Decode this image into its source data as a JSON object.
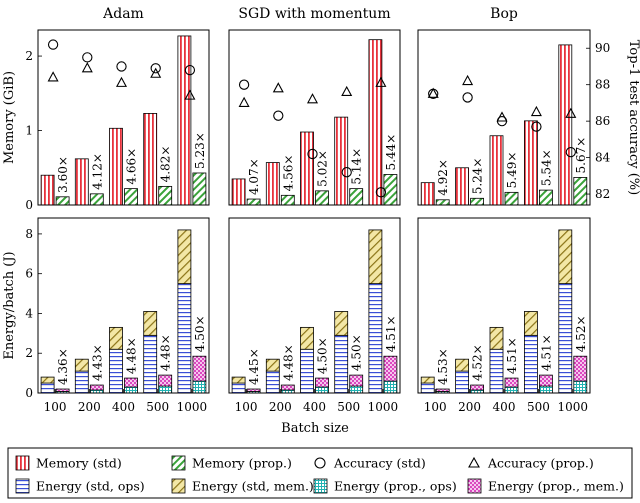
{
  "chart_data": {
    "type": "bar",
    "categories": [
      "100",
      "200",
      "400",
      "500",
      "1000"
    ],
    "xlabel": "Batch size",
    "colors": {
      "memory_std": "#e8323c",
      "memory_prop": "#3aa33a",
      "energy_ops": "#3a4fd6",
      "energy_mem": "#c9a81e",
      "energy_prop_ops": "#22b3b3",
      "energy_prop_mem": "#d21fb0"
    },
    "panels": [
      {
        "title": "Adam",
        "memory": {
          "std": [
            0.4,
            0.62,
            1.03,
            1.23,
            2.27
          ],
          "prop": [
            0.11,
            0.15,
            0.22,
            0.25,
            0.43
          ],
          "ratio_labels": [
            "3.60×",
            "4.12×",
            "4.66×",
            "4.82×",
            "5.23×"
          ]
        },
        "accuracy": {
          "std": [
            90.2,
            89.5,
            89.0,
            88.9,
            88.8
          ],
          "prop": [
            88.4,
            88.9,
            88.1,
            88.6,
            87.4
          ]
        },
        "energy": {
          "std_ops": [
            0.5,
            1.1,
            2.2,
            2.9,
            5.5
          ],
          "std_mem": [
            0.3,
            0.6,
            1.1,
            1.2,
            2.7
          ],
          "prop_ops": [
            0.08,
            0.15,
            0.3,
            0.35,
            0.6
          ],
          "prop_mem": [
            0.12,
            0.25,
            0.45,
            0.55,
            1.25
          ],
          "ratio_labels": [
            "4.36×",
            "4.43×",
            "4.48×",
            "4.48×",
            "4.50×"
          ]
        }
      },
      {
        "title": "SGD with momentum",
        "memory": {
          "std": [
            0.35,
            0.57,
            0.98,
            1.18,
            2.22
          ],
          "prop": [
            0.08,
            0.13,
            0.19,
            0.22,
            0.41
          ],
          "ratio_labels": [
            "4.07×",
            "4.56×",
            "5.02×",
            "5.14×",
            "5.44×"
          ]
        },
        "accuracy": {
          "std": [
            88.0,
            86.3,
            84.2,
            83.2,
            82.1
          ],
          "prop": [
            87.0,
            87.8,
            87.2,
            87.6,
            88.1
          ]
        },
        "energy": {
          "std_ops": [
            0.5,
            1.1,
            2.2,
            2.9,
            5.5
          ],
          "std_mem": [
            0.3,
            0.6,
            1.1,
            1.2,
            2.7
          ],
          "prop_ops": [
            0.08,
            0.15,
            0.3,
            0.35,
            0.6
          ],
          "prop_mem": [
            0.12,
            0.25,
            0.45,
            0.55,
            1.25
          ],
          "ratio_labels": [
            "4.45×",
            "4.48×",
            "4.50×",
            "4.50×",
            "4.51×"
          ]
        }
      },
      {
        "title": "Bop",
        "memory": {
          "std": [
            0.3,
            0.5,
            0.93,
            1.13,
            2.15
          ],
          "prop": [
            0.07,
            0.09,
            0.17,
            0.2,
            0.37
          ],
          "ratio_labels": [
            "4.92×",
            "5.24×",
            "5.49×",
            "5.54×",
            "5.67×"
          ]
        },
        "accuracy": {
          "std": [
            87.5,
            87.3,
            86.0,
            85.7,
            84.3
          ],
          "prop": [
            87.5,
            88.2,
            86.2,
            86.5,
            86.4
          ]
        },
        "energy": {
          "std_ops": [
            0.5,
            1.1,
            2.2,
            2.9,
            5.5
          ],
          "std_mem": [
            0.3,
            0.6,
            1.1,
            1.2,
            2.7
          ],
          "prop_ops": [
            0.08,
            0.15,
            0.3,
            0.35,
            0.6
          ],
          "prop_mem": [
            0.12,
            0.25,
            0.45,
            0.55,
            1.25
          ],
          "ratio_labels": [
            "4.53×",
            "4.52×",
            "4.51×",
            "4.51×",
            "4.52×"
          ]
        }
      }
    ],
    "memory_axis": {
      "label": "Memory (GiB)",
      "ylim": [
        0,
        2.35
      ],
      "ticks": [
        "0",
        "1",
        "2"
      ]
    },
    "accuracy_axis": {
      "label": "Top-1 test accuracy (%)",
      "ylim": [
        81.4,
        91.0
      ],
      "ticks": [
        "82",
        "84",
        "86",
        "88",
        "90"
      ]
    },
    "energy_axis": {
      "label": "Energy/batch (J)",
      "ylim": [
        0,
        8.8
      ],
      "ticks": [
        "0",
        "2",
        "4",
        "6",
        "8"
      ]
    },
    "legend": [
      {
        "key": "memory_std",
        "label": "Memory (std)"
      },
      {
        "key": "memory_prop",
        "label": "Memory (prop.)"
      },
      {
        "key": "acc_std",
        "label": "Accuracy (std)"
      },
      {
        "key": "acc_prop",
        "label": "Accuracy (prop.)"
      },
      {
        "key": "energy_ops",
        "label": "Energy (std, ops)"
      },
      {
        "key": "energy_mem",
        "label": "Energy (std, mem.)"
      },
      {
        "key": "energy_prop_ops",
        "label": "Energy (prop., ops)"
      },
      {
        "key": "energy_prop_mem",
        "label": "Energy (prop., mem.)"
      }
    ]
  }
}
